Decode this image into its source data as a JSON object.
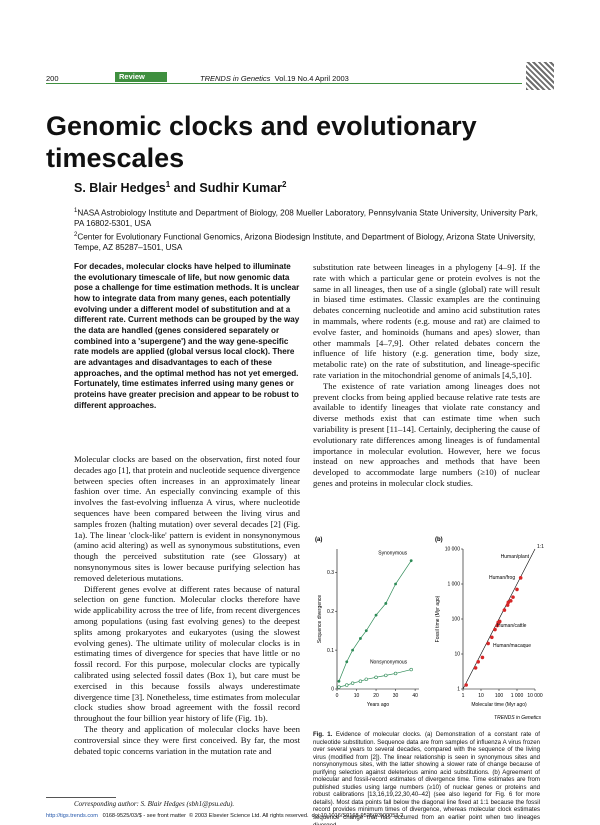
{
  "header": {
    "page": "200",
    "section": "Review",
    "journal": "TRENDS in Genetics",
    "issue": "Vol.19 No.4 April 2003"
  },
  "title": "Genomic clocks and evolutionary timescales",
  "authors": [
    {
      "name": "S. Blair Hedges",
      "affiliation": "1"
    },
    {
      "name": "Sudhir Kumar",
      "affiliation": "2"
    }
  ],
  "author_conjunction": "and",
  "affiliations": [
    {
      "number": "1",
      "text": "NASA Astrobiology Institute and Department of Biology, 208 Mueller Laboratory, Pennsylvania State University, University Park, PA 16802-5301, USA"
    },
    {
      "number": "2",
      "text": "Center for Evolutionary Functional Genomics, Arizona Biodesign Institute, and Department of Biology, Arizona State University, Tempe, AZ 85287–1501, USA"
    }
  ],
  "abstract": "For decades, molecular clocks have helped to illuminate the evolutionary timescale of life, but now genomic data pose a challenge for time estimation methods. It is unclear how to integrate data from many genes, each potentially evolving under a different model of substitution and at a different rate. Current methods can be grouped by the way the data are handled (genes considered separately or combined into a 'supergene') and the way gene-specific rate models are applied (global versus local clock). There are advantages and disadvantages to each of these approaches, and the optimal method has not yet emerged. Fortunately, time estimates inferred using many genes or proteins have greater precision and appear to be robust to different approaches.",
  "left_column": [
    "Molecular clocks are based on the observation, first noted four decades ago [1], that protein and nucleotide sequence divergence between species often increases in an approximately linear fashion over time. An especially convincing example of this involves the fast-evolving influenza A virus, where nucleotide sequences have been compared between the living virus and samples frozen (halting mutation) over several decades [2] (Fig. 1a). The linear 'clock-like' pattern is evident in nonsynonymous (amino acid altering) as well as synonymous substitutions, even though the perceived substitution rate (see Glossary) at nonsynonymous sites is lower because purifying selection has removed deleterious mutations.",
    "Different genes evolve at different rates because of natural selection on gene function. Molecular clocks therefore have wide applicability across the tree of life, from recent divergences among populations (using fast evolving genes) to the deepest splits among prokaryotes and eukaryotes (using the slowest evolving genes). The ultimate utility of molecular clocks is in estimating times of divergence for species that have little or no fossil record. For this purpose, molecular clocks are typically calibrated using selected fossil dates (Box 1), but care must be exercised in this because fossils always underestimate divergence time [3]. Nonetheless, time estimates from molecular clock studies show broad agreement with the fossil record throughout the four billion year history of life (Fig. 1b).",
    "The theory and application of molecular clocks have been controversial since they were first conceived. By far, the most debated topic concerns variation in the mutation rate and"
  ],
  "right_column": [
    "substitution rate between lineages in a phylogeny [4–9]. If the rate with which a particular gene or protein evolves is not the same in all lineages, then use of a single (global) rate will result in biased time estimates. Classic examples are the continuing debates concerning nucleotide and amino acid substitution rates in mammals, where rodents (e.g. mouse and rat) are claimed to evolve faster, and hominoids (humans and apes) slower, than other mammals [4–7,9]. Other related debates concern the influence of life history (e.g. generation time, body size, metabolic rate) on the rate of substitution, and lineage-specific rate variation in the mitochondrial genome of animals [4,5,10].",
    "The existence of rate variation among lineages does not prevent clocks from being applied because relative rate tests are available to identify lineages that violate rate constancy and diverse methods exist that can estimate time when such variability is present [11–14]. Certainly, deciphering the cause of evolutionary rate differences among lineages is of fundamental importance in molecular evolution. However, here we focus instead on new approaches and methods that have been developed to accommodate large numbers (≥10) of nuclear genes and proteins in molecular clock studies."
  ],
  "figure": {
    "label": "Fig. 1.",
    "caption": "Evidence of molecular clocks. (a) Demonstration of a constant rate of nucleotide substitution. Sequence data are from samples of influenza A virus frozen over several years to several decades, compared with the sequence of the living virus (modified from [2]). The linear relationship is seen in synonymous sites and nonsynonymous sites, with the latter showing a slower rate of change because of purifying selection against deleterious amino acid substitutions. (b) Agreement of molecular and fossil-record estimates of divergence time. Time estimates are from published studies using large numbers (≥10) of nuclear genes or proteins and robust calibrations [13,16,19,22,30,40–42] (see also legend for Fig. 6 for more details). Most data points fall below the diagonal line fixed at 1:1 because the fossil record provides minimum times of divergence, whereas molecular clock estimates sequence change that has occurred from an earlier point when two lineages diverged.",
    "credit": "TRENDS in Genetics",
    "panels": [
      {
        "label": "(a)",
        "type": "scatter",
        "x_label": "Years ago",
        "y_label": "Sequence divergence",
        "xlim": [
          0,
          42
        ],
        "xticks": [
          0,
          10,
          20,
          30,
          40
        ],
        "ylim": [
          0,
          0.36
        ],
        "yticks": [
          0,
          0.1,
          0.2,
          0.3
        ],
        "series": [
          {
            "name": "Synonymous",
            "color": "#2e8b57",
            "x": [
              1,
              5,
              8,
              12,
              15,
              20,
              25,
              30,
              38
            ],
            "values": [
              0.02,
              0.07,
              0.1,
              0.13,
              0.15,
              0.19,
              0.22,
              0.27,
              0.33
            ]
          },
          {
            "name": "Nonsynonymous",
            "color": "#2e8b57",
            "x": [
              1,
              5,
              8,
              12,
              15,
              20,
              25,
              30,
              38
            ],
            "values": [
              0.005,
              0.01,
              0.015,
              0.02,
              0.025,
              0.03,
              0.035,
              0.04,
              0.05
            ]
          }
        ]
      },
      {
        "label": "(b)",
        "type": "scatter",
        "log_scale": true,
        "x_label": "Molecular time (Myr ago)",
        "y_label": "Fossil time (Myr ago)",
        "xlim": [
          1,
          10000
        ],
        "xticks": [
          1,
          10,
          100,
          {
            "value": 1000,
            "label": "1 000"
          },
          {
            "value": 10000,
            "label": "10 000"
          }
        ],
        "ylim": [
          1,
          10000
        ],
        "yticks": [
          1,
          10,
          100,
          {
            "value": 1000,
            "label": "1 000"
          },
          {
            "value": 10000,
            "label": "10 000"
          }
        ],
        "series": [
          {
            "color": "#d62728",
            "x": [
              1.5,
              5,
              7,
              12,
              25,
              40,
              60,
              80,
              90,
              110,
              200,
              300,
              330,
              450,
              600,
              1000,
              1600
            ],
            "values": [
              1.3,
              4,
              6,
              8,
              20,
              30,
              50,
              65,
              80,
              85,
              180,
              250,
              300,
              330,
              420,
              700,
              1500
            ]
          }
        ],
        "annotations": [
          "Human/plant",
          "Human/frog",
          "Human/cattle",
          "Human/macaque",
          "1:1"
        ]
      }
    ]
  },
  "footnote": "Corresponding author: S. Blair Hedges (sbh1@psu.edu).",
  "footer": {
    "url": "http://tigs.trends.com",
    "issn": "0168-9525/03/$ - see front matter",
    "copyright": "© 2003 Elsevier Science Ltd. All rights reserved.",
    "doi": "doi:10.1016/S0168-9525(03)00053-2"
  }
}
